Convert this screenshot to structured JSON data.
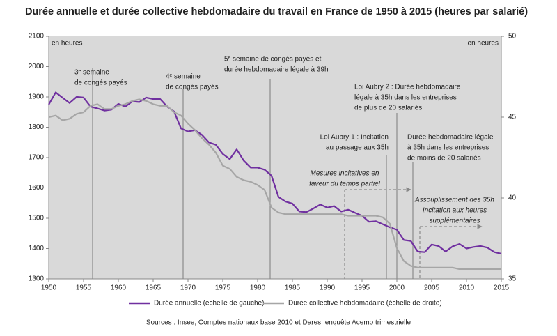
{
  "chart_data": {
    "type": "line",
    "title": "Durée annuelle et durée collective hebdomadaire du travail en France de 1950 à 2015 (heures par salarié)",
    "y_label": "en heures",
    "y2_label": "en heures",
    "source": "Sources : Insee, Comptes nationaux base 2010 et Dares, enquête Acemo trimestrielle",
    "x": [
      1950,
      1951,
      1952,
      1953,
      1954,
      1955,
      1956,
      1957,
      1958,
      1959,
      1960,
      1961,
      1962,
      1963,
      1964,
      1965,
      1966,
      1967,
      1968,
      1969,
      1970,
      1971,
      1972,
      1973,
      1974,
      1975,
      1976,
      1977,
      1978,
      1979,
      1980,
      1981,
      1982,
      1983,
      1984,
      1985,
      1986,
      1987,
      1988,
      1989,
      1990,
      1991,
      1992,
      1993,
      1994,
      1995,
      1996,
      1997,
      1998,
      1999,
      2000,
      2001,
      2002,
      2003,
      2004,
      2005,
      2006,
      2007,
      2008,
      2009,
      2010,
      2011,
      2012,
      2013,
      2014,
      2015
    ],
    "xlim": [
      1950,
      2015
    ],
    "xticks": [
      1950,
      1955,
      1960,
      1965,
      1970,
      1975,
      1980,
      1985,
      1990,
      1995,
      2000,
      2005,
      2010,
      2015
    ],
    "ylim": [
      1300,
      2100
    ],
    "yticks": [
      1300,
      1400,
      1500,
      1600,
      1700,
      1800,
      1900,
      2000,
      2100
    ],
    "y2lim": [
      35,
      50
    ],
    "y2ticks": [
      35,
      40,
      45,
      50
    ],
    "background": "#d9d9d9",
    "series": [
      {
        "name": "Durée annuelle (échelle de gauche)",
        "color": "#7030a0",
        "values": [
          1875,
          1915,
          1897,
          1880,
          1900,
          1898,
          1868,
          1862,
          1855,
          1858,
          1877,
          1868,
          1885,
          1883,
          1898,
          1893,
          1893,
          1868,
          1852,
          1796,
          1786,
          1790,
          1775,
          1750,
          1742,
          1712,
          1695,
          1727,
          1690,
          1667,
          1667,
          1660,
          1640,
          1570,
          1555,
          1548,
          1522,
          1520,
          1532,
          1545,
          1535,
          1540,
          1522,
          1528,
          1518,
          1508,
          1488,
          1490,
          1480,
          1470,
          1462,
          1428,
          1425,
          1390,
          1388,
          1413,
          1408,
          1390,
          1407,
          1415,
          1400,
          1405,
          1408,
          1403,
          1388,
          1383
        ]
      },
      {
        "name": "Durée collective hebdomadaire (échelle de droite)",
        "color": "#a6a6a6",
        "axis": "y2",
        "values": [
          45.0,
          45.1,
          44.8,
          44.9,
          45.2,
          45.3,
          45.7,
          45.8,
          45.5,
          45.5,
          45.7,
          45.8,
          46.0,
          46.1,
          46.0,
          45.8,
          45.7,
          45.7,
          45.3,
          45.1,
          44.6,
          44.2,
          43.7,
          43.3,
          42.8,
          42.0,
          41.8,
          41.3,
          41.1,
          41.0,
          40.8,
          40.5,
          39.4,
          39.1,
          39.0,
          39.0,
          39.0,
          39.0,
          39.0,
          39.0,
          39.0,
          39.0,
          39.0,
          38.9,
          38.9,
          38.9,
          38.9,
          38.9,
          38.8,
          38.4,
          36.9,
          36.1,
          35.8,
          35.7,
          35.7,
          35.7,
          35.7,
          35.7,
          35.7,
          35.6,
          35.6,
          35.6,
          35.6,
          35.6,
          35.6,
          35.6
        ]
      }
    ],
    "annotations": [
      {
        "lines": [
          "3ᵉ semaine",
          "de congés payés"
        ]
      },
      {
        "lines": [
          "4ᵉ semaine",
          "de congés payés"
        ]
      },
      {
        "lines": [
          "5ᵉ semaine de congés payés et",
          "durée hebdomadaire légale à 39h"
        ]
      },
      {
        "lines": [
          "Loi Aubry 2 : Durée hebdomadaire",
          "légale à 35h dans les entreprises",
          "de plus de 20 salariés"
        ]
      },
      {
        "lines": [
          "Loi Aubry 1 : Incitation",
          "au passage aux 35h"
        ]
      },
      {
        "lines": [
          "Durée hebdomadaire légale",
          "à 35h dans les entreprises",
          "de moins de 20 salariés"
        ]
      },
      {
        "lines": [
          "Mesures incitatives en",
          "faveur du temps partiel"
        ],
        "italic": true
      },
      {
        "lines": [
          "Assouplissement des 35h",
          "Incitation aux heures",
          "supplémentaires"
        ],
        "italic": true
      }
    ]
  }
}
